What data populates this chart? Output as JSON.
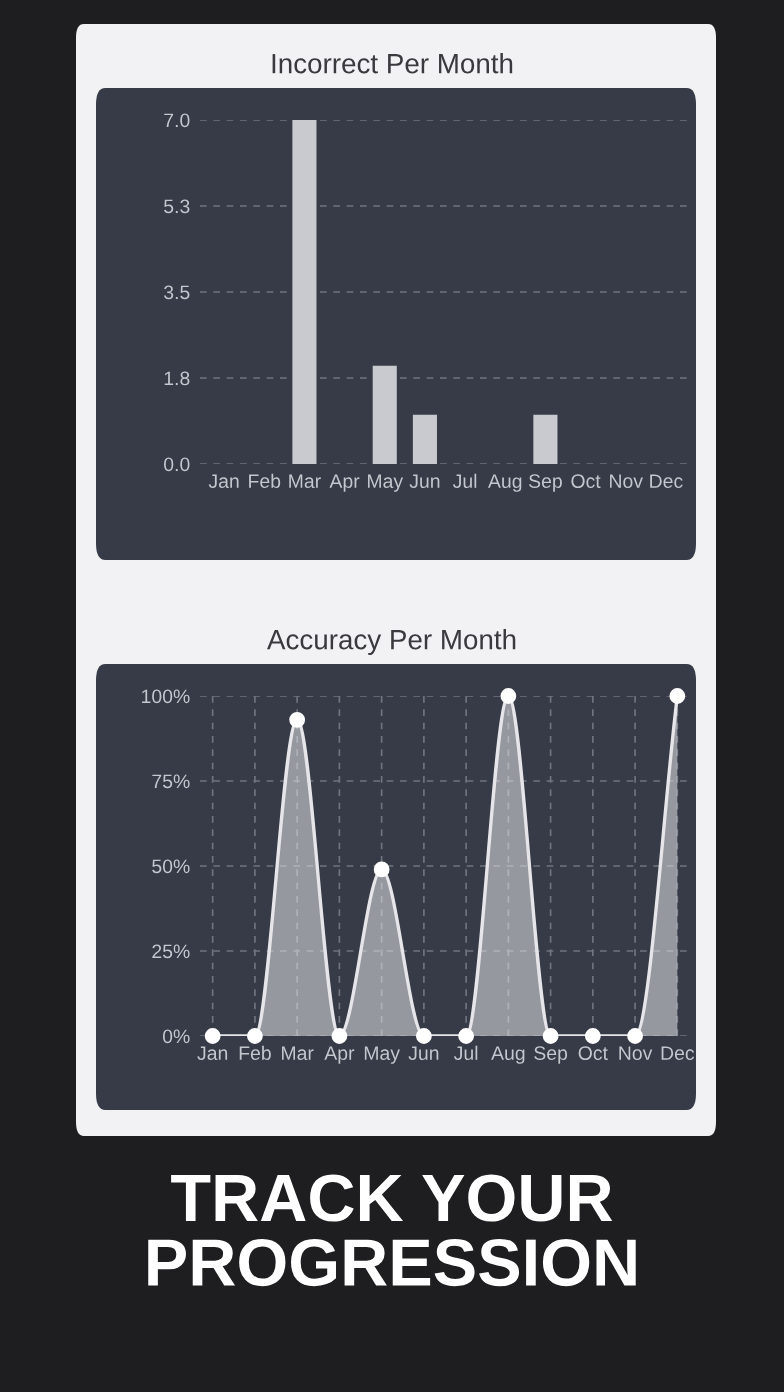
{
  "chart_data": [
    {
      "type": "bar",
      "title": "Incorrect Per Month",
      "categories": [
        "Jan",
        "Feb",
        "Mar",
        "Apr",
        "May",
        "Jun",
        "Jul",
        "Aug",
        "Sep",
        "Oct",
        "Nov",
        "Dec"
      ],
      "values": [
        0,
        0,
        7,
        0,
        2,
        1,
        0,
        0,
        1,
        0,
        0,
        0
      ],
      "color": "#c9cacf",
      "ylim": [
        0,
        7
      ],
      "yticks": [
        {
          "value": 0,
          "label": "0.0"
        },
        {
          "value": 1.75,
          "label": "1.8"
        },
        {
          "value": 3.5,
          "label": "3.5"
        },
        {
          "value": 5.25,
          "label": "5.3"
        },
        {
          "value": 7,
          "label": "7.0"
        }
      ],
      "grid": "y"
    },
    {
      "type": "area",
      "title": "Accuracy Per Month",
      "categories": [
        "Jan",
        "Feb",
        "Mar",
        "Apr",
        "May",
        "Jun",
        "Jul",
        "Aug",
        "Sep",
        "Oct",
        "Nov",
        "Dec"
      ],
      "values": [
        0,
        0,
        93,
        0,
        49,
        0,
        0,
        100,
        0,
        0,
        0,
        100
      ],
      "color": "#e6e6ea",
      "marker": "circle",
      "ylim": [
        0,
        100
      ],
      "yticks": [
        {
          "value": 0,
          "label": "0%"
        },
        {
          "value": 25,
          "label": "25%"
        },
        {
          "value": 50,
          "label": "50%"
        },
        {
          "value": 75,
          "label": "75%"
        },
        {
          "value": 100,
          "label": "100%"
        }
      ],
      "grid": true,
      "annotations": [
        "TRACK YOUR PROGRESSION"
      ]
    }
  ]
}
